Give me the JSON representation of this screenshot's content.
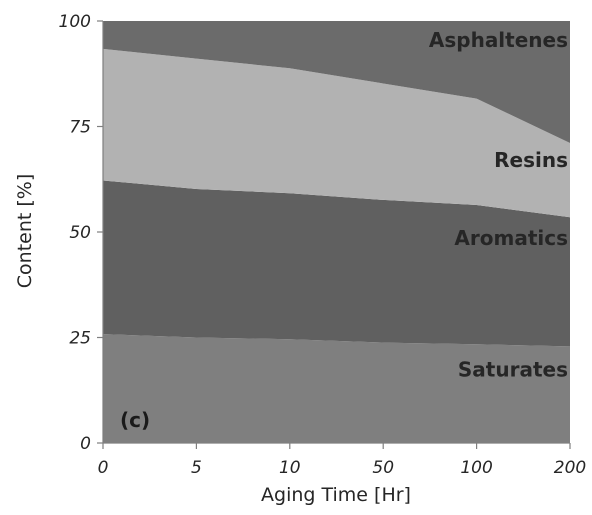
{
  "chart_data": {
    "type": "area",
    "stacked": true,
    "panel_label": "(c)",
    "x_tick_labels": [
      "0",
      "5",
      "10",
      "50",
      "100",
      "200"
    ],
    "xlabel": "Aging Time [Hr]",
    "ylabel": "Content [%]",
    "ylim": [
      0,
      100
    ],
    "y_ticks": [
      0,
      25,
      50,
      75,
      100
    ],
    "grid": false,
    "legend": "none (series labels drawn inside bands, right side)",
    "series": [
      {
        "name": "Saturates",
        "values": [
          25.8,
          25.0,
          24.6,
          23.8,
          23.4,
          22.9
        ],
        "color": "#7f7f7f"
      },
      {
        "name": "Aromatics",
        "values": [
          36.4,
          35.2,
          34.6,
          33.8,
          33.0,
          30.6
        ],
        "color": "#606060"
      },
      {
        "name": "Resins",
        "values": [
          31.2,
          30.9,
          29.6,
          27.6,
          25.2,
          17.6
        ],
        "color": "#b2b2b2"
      },
      {
        "name": "Asphaltenes",
        "values": [
          6.6,
          8.9,
          11.2,
          14.8,
          18.4,
          28.9
        ],
        "color": "#6b6b6b"
      }
    ]
  }
}
